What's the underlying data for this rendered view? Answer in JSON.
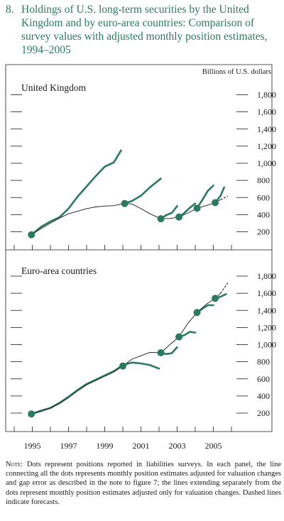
{
  "figure": {
    "number": "8.",
    "title": "Holdings of U.S. long-term securities by the United Kingdom and by euro-area countries: Comparison of survey values with adjusted monthly position estimates, 1994–2005"
  },
  "colors": {
    "accent": "#2a7a62",
    "estimate_line": "#1a1a1a",
    "axis": "#1a1a1a"
  },
  "note": {
    "lead": "Note:",
    "text": "Dots represent positions reported in liabilities surveys. In each panel, the line connecting all the dots represents monthly position estimates adjusted for valuation changes and gap error as described in the note to figure 7; the lines extending separately from the dots represent monthly position estimates adjusted only for valuation changes. Dashed lines indicate forecasts."
  },
  "chart_data": {
    "type": "line",
    "units_label": "Billions of U.S. dollars",
    "x_ticks": [
      "1995",
      "1997",
      "1999",
      "2001",
      "2003",
      "2005"
    ],
    "x_range": [
      1994.0,
      2006.0
    ],
    "panels": [
      {
        "title": "United Kingdom",
        "ylim": [
          100,
          1800
        ],
        "y_ticks": [
          "200",
          "400",
          "600",
          "800",
          "1,000",
          "1,200",
          "1,400",
          "1,600",
          "1,800"
        ],
        "y_tick_values": [
          200,
          400,
          600,
          800,
          1000,
          1200,
          1400,
          1600,
          1800
        ],
        "survey_points": [
          {
            "x": 1994.95,
            "y": 165
          },
          {
            "x": 2000.1,
            "y": 530
          },
          {
            "x": 2002.1,
            "y": 352
          },
          {
            "x": 2003.1,
            "y": 372
          },
          {
            "x": 2004.1,
            "y": 475
          },
          {
            "x": 2005.1,
            "y": 540
          }
        ],
        "adjusted_line": [
          [
            1994.95,
            165
          ],
          [
            1995.5,
            240
          ],
          [
            1996.0,
            300
          ],
          [
            1996.5,
            360
          ],
          [
            1997.0,
            410
          ],
          [
            1997.5,
            440
          ],
          [
            1998.0,
            470
          ],
          [
            1998.5,
            490
          ],
          [
            1999.0,
            500
          ],
          [
            1999.5,
            505
          ],
          [
            2000.1,
            530
          ],
          [
            2000.5,
            525
          ],
          [
            2001.0,
            470
          ],
          [
            2001.5,
            410
          ],
          [
            2002.1,
            352
          ],
          [
            2002.6,
            355
          ],
          [
            2003.1,
            372
          ],
          [
            2003.6,
            420
          ],
          [
            2004.1,
            475
          ],
          [
            2004.6,
            505
          ],
          [
            2005.1,
            540
          ],
          [
            2005.4,
            575
          ]
        ],
        "adjusted_forecast": [
          [
            2005.4,
            575
          ],
          [
            2005.6,
            595
          ],
          [
            2005.8,
            615
          ]
        ],
        "valuation_lines": [
          [
            [
              1994.95,
              165
            ],
            [
              1995.5,
              260
            ],
            [
              1996.0,
              320
            ],
            [
              1996.5,
              370
            ],
            [
              1997.0,
              470
            ],
            [
              1997.5,
              610
            ],
            [
              1998.0,
              730
            ],
            [
              1998.5,
              850
            ],
            [
              1999.0,
              960
            ],
            [
              1999.5,
              1010
            ],
            [
              1999.9,
              1150
            ]
          ],
          [
            [
              2000.1,
              530
            ],
            [
              2000.5,
              560
            ],
            [
              2001.0,
              620
            ],
            [
              2001.5,
              720
            ],
            [
              2002.1,
              820
            ]
          ],
          [
            [
              2002.1,
              352
            ],
            [
              2002.4,
              395
            ],
            [
              2002.7,
              420
            ],
            [
              2003.0,
              500
            ]
          ],
          [
            [
              2003.1,
              372
            ],
            [
              2003.4,
              420
            ],
            [
              2003.7,
              480
            ],
            [
              2004.0,
              530
            ]
          ],
          [
            [
              2004.1,
              475
            ],
            [
              2004.4,
              575
            ],
            [
              2004.7,
              680
            ],
            [
              2005.0,
              740
            ]
          ],
          [
            [
              2005.1,
              540
            ],
            [
              2005.4,
              620
            ],
            [
              2005.6,
              720
            ]
          ]
        ]
      },
      {
        "title": "Euro-area countries",
        "ylim": [
          100,
          1800
        ],
        "y_ticks": [
          "200",
          "400",
          "600",
          "800",
          "1,000",
          "1,200",
          "1,400",
          "1,600",
          "1,800"
        ],
        "y_tick_values": [
          200,
          400,
          600,
          800,
          1000,
          1200,
          1400,
          1600,
          1800
        ],
        "survey_points": [
          {
            "x": 1994.95,
            "y": 190
          },
          {
            "x": 2000.0,
            "y": 750
          },
          {
            "x": 2002.1,
            "y": 905
          },
          {
            "x": 2003.1,
            "y": 1090
          },
          {
            "x": 2004.1,
            "y": 1375
          },
          {
            "x": 2005.1,
            "y": 1540
          }
        ],
        "adjusted_line": [
          [
            1994.95,
            190
          ],
          [
            1995.5,
            220
          ],
          [
            1996.0,
            260
          ],
          [
            1996.5,
            310
          ],
          [
            1997.0,
            380
          ],
          [
            1997.5,
            460
          ],
          [
            1998.0,
            530
          ],
          [
            1998.5,
            580
          ],
          [
            1999.0,
            630
          ],
          [
            1999.5,
            680
          ],
          [
            2000.0,
            750
          ],
          [
            2000.5,
            830
          ],
          [
            2001.0,
            870
          ],
          [
            2001.5,
            910
          ],
          [
            2002.1,
            905
          ],
          [
            2002.6,
            1000
          ],
          [
            2003.1,
            1090
          ],
          [
            2003.6,
            1250
          ],
          [
            2004.1,
            1375
          ],
          [
            2004.6,
            1470
          ],
          [
            2005.1,
            1540
          ],
          [
            2005.4,
            1600
          ]
        ],
        "adjusted_forecast": [
          [
            2005.4,
            1600
          ],
          [
            2005.6,
            1660
          ],
          [
            2005.8,
            1720
          ]
        ],
        "valuation_lines": [
          [
            [
              1994.95,
              190
            ],
            [
              1995.5,
              230
            ],
            [
              1996.0,
              260
            ],
            [
              1996.5,
              320
            ],
            [
              1997.0,
              390
            ],
            [
              1997.5,
              470
            ],
            [
              1998.0,
              540
            ],
            [
              1998.5,
              590
            ],
            [
              1999.0,
              640
            ],
            [
              1999.5,
              690
            ],
            [
              2000.0,
              760
            ],
            [
              2000.5,
              790
            ],
            [
              2001.0,
              780
            ],
            [
              2001.5,
              760
            ],
            [
              2002.0,
              720
            ]
          ],
          [
            [
              2002.1,
              905
            ],
            [
              2002.4,
              890
            ],
            [
              2002.7,
              900
            ],
            [
              2003.0,
              970
            ]
          ],
          [
            [
              2003.1,
              1090
            ],
            [
              2003.4,
              1110
            ],
            [
              2003.7,
              1150
            ],
            [
              2004.0,
              1140
            ]
          ],
          [
            [
              2004.1,
              1375
            ],
            [
              2004.4,
              1420
            ],
            [
              2004.7,
              1460
            ],
            [
              2005.0,
              1460
            ]
          ],
          [
            [
              2005.1,
              1540
            ],
            [
              2005.4,
              1560
            ],
            [
              2005.7,
              1590
            ]
          ]
        ]
      }
    ]
  }
}
